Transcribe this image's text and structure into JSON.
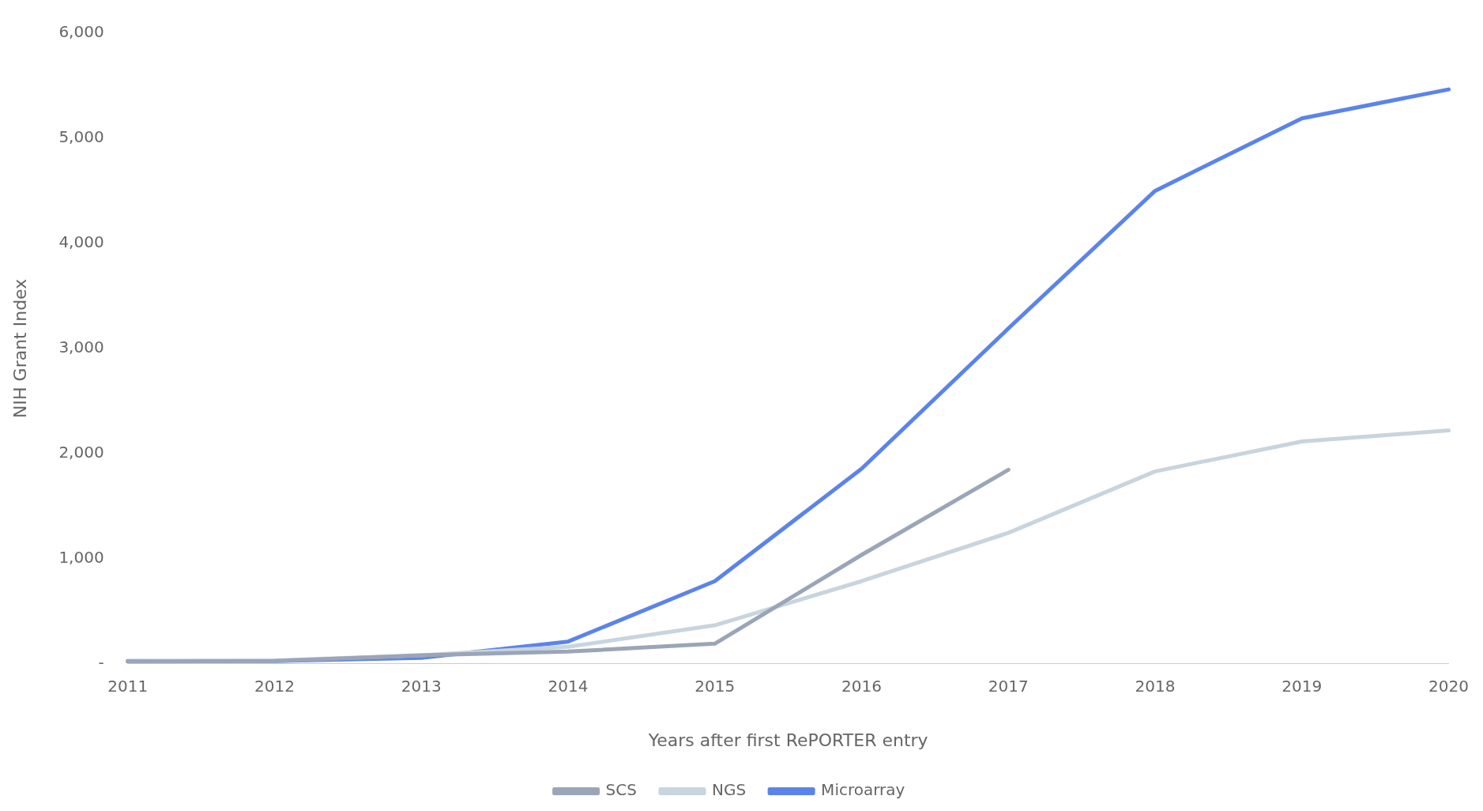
{
  "chart_data": {
    "type": "line",
    "xlabel": "Years after first RePORTER entry",
    "ylabel": "NIH Grant Index",
    "categories": [
      "2011",
      "2012",
      "2013",
      "2014",
      "2015",
      "2016",
      "2017",
      "2018",
      "2019",
      "2020"
    ],
    "series": [
      {
        "name": "SCS",
        "color": "#9aa5b8",
        "values": [
          20,
          25,
          80,
          115,
          190,
          1035,
          1845,
          null,
          null,
          null
        ]
      },
      {
        "name": "NGS",
        "color": "#c8d4de",
        "values": [
          20,
          30,
          80,
          160,
          365,
          785,
          1245,
          1830,
          2115,
          2220
        ]
      },
      {
        "name": "Microarray",
        "color": "#5b84ea",
        "values": [
          25,
          25,
          55,
          210,
          785,
          1855,
          3190,
          4500,
          5190,
          5465
        ]
      }
    ],
    "ylim": [
      0,
      6000
    ],
    "yticks": [
      {
        "value": 0,
        "label": "-"
      },
      {
        "value": 1000,
        "label": "1,000"
      },
      {
        "value": 2000,
        "label": "2,000"
      },
      {
        "value": 3000,
        "label": "3,000"
      },
      {
        "value": 4000,
        "label": "4,000"
      },
      {
        "value": 5000,
        "label": "5,000"
      },
      {
        "value": 6000,
        "label": "6,000"
      }
    ],
    "grid": false,
    "legend": "bottom",
    "marker": "none",
    "line_style": "solid"
  }
}
